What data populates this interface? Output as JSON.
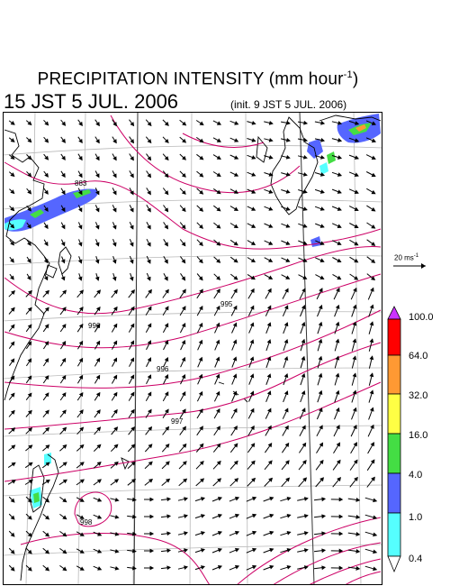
{
  "title": {
    "main": "PRECIPITATION INTENSITY (mm hour",
    "unit_exp": "-1",
    "close": ")",
    "valid_time": "15 JST 5 JUL. 2006",
    "init_time": "(init. 9 JST 5 JUL. 2006)"
  },
  "reference_vector": {
    "label": "20 ms",
    "exp": "-1"
  },
  "contour_labels": [
    "883",
    "996",
    "995",
    "996",
    "997",
    "998"
  ],
  "legend": {
    "levels": [
      "100.0",
      "64.0",
      "32.0",
      "16.0",
      "4.0",
      "1.0",
      "0.4"
    ],
    "colors": [
      "#ff0000",
      "#ff9933",
      "#ffff44",
      "#44dd44",
      "#5566ff",
      "#55ffff",
      "#ffffff"
    ],
    "top_arrow_color": "#cc33ff"
  },
  "colors": {
    "coast": "#000000",
    "grid": "#b8b8b8",
    "isobar": "#cc0066",
    "wind": "#000000"
  }
}
